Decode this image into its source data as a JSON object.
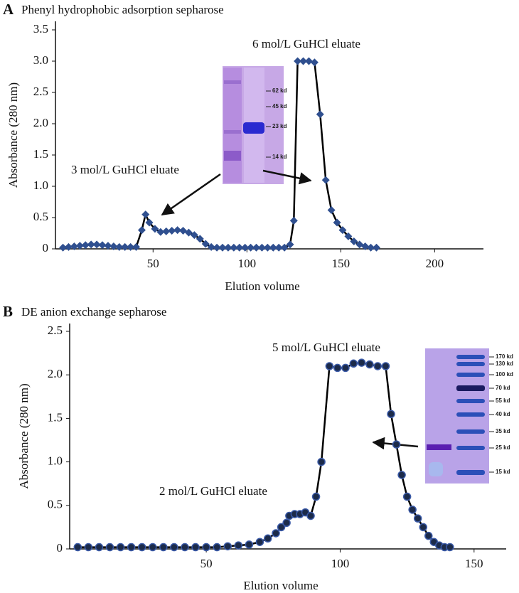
{
  "chart_data": [
    {
      "type": "line",
      "panel": "A",
      "title": "Phenyl hydrophobic adsorption sepharose",
      "xlabel": "Elution volume",
      "ylabel": "Absorbance (280 nm)",
      "x": [
        2,
        5,
        8,
        11,
        14,
        17,
        20,
        23,
        26,
        29,
        32,
        35,
        38,
        41,
        44,
        46,
        48,
        51,
        54,
        57,
        60,
        63,
        66,
        69,
        72,
        75,
        78,
        81,
        84,
        87,
        90,
        93,
        96,
        99,
        102,
        105,
        108,
        111,
        114,
        117,
        120,
        123,
        125,
        127,
        130,
        133,
        136,
        139,
        142,
        145,
        148,
        151,
        154,
        157,
        160,
        163,
        166,
        169
      ],
      "values": [
        0.02,
        0.03,
        0.04,
        0.05,
        0.06,
        0.07,
        0.07,
        0.06,
        0.05,
        0.04,
        0.03,
        0.03,
        0.03,
        0.03,
        0.3,
        0.55,
        0.42,
        0.32,
        0.27,
        0.28,
        0.29,
        0.3,
        0.29,
        0.26,
        0.22,
        0.16,
        0.08,
        0.03,
        0.02,
        0.02,
        0.02,
        0.02,
        0.02,
        0.02,
        0.02,
        0.02,
        0.02,
        0.02,
        0.02,
        0.02,
        0.02,
        0.07,
        0.45,
        3.0,
        3.0,
        3.0,
        2.98,
        2.15,
        1.1,
        0.62,
        0.42,
        0.3,
        0.2,
        0.12,
        0.07,
        0.04,
        0.02,
        0.02
      ],
      "color": "#2f4f8f",
      "xlim": [
        -2,
        226
      ],
      "xticks": [
        50,
        100,
        150,
        200
      ],
      "ylim": [
        0,
        3.5
      ],
      "yticks": [
        0,
        0.5,
        {
          "value": 1,
          "label": "1.0"
        },
        1.5,
        {
          "value": 2,
          "label": "2.0"
        },
        2.5,
        {
          "value": 3,
          "label": "3.0"
        },
        3.5
      ],
      "annotations": [
        "6 mol/L GuHCl eluate",
        "3 mol/L GuHCl eluate"
      ],
      "gel_labels": [
        "62 kd",
        "45 kd",
        "23 kd",
        "14 kd"
      ]
    },
    {
      "type": "line",
      "panel": "B",
      "title": "DE anion exchange sepharose",
      "xlabel": "Elution volume",
      "ylabel": "Absorbance (280 nm)",
      "x": [
        2,
        6,
        10,
        14,
        18,
        22,
        26,
        30,
        34,
        38,
        42,
        46,
        50,
        54,
        58,
        62,
        66,
        70,
        73,
        76,
        78,
        80,
        81,
        83,
        85,
        87,
        89,
        91,
        93,
        96,
        99,
        102,
        105,
        108,
        111,
        114,
        117,
        119,
        121,
        123,
        125,
        127,
        129,
        131,
        133,
        135,
        137,
        139,
        141
      ],
      "values": [
        0.02,
        0.02,
        0.02,
        0.02,
        0.02,
        0.02,
        0.02,
        0.02,
        0.02,
        0.02,
        0.02,
        0.02,
        0.02,
        0.02,
        0.03,
        0.04,
        0.05,
        0.08,
        0.12,
        0.18,
        0.25,
        0.3,
        0.38,
        0.4,
        0.4,
        0.42,
        0.38,
        0.6,
        1.0,
        2.1,
        2.08,
        2.08,
        2.13,
        2.14,
        2.12,
        2.1,
        2.1,
        1.55,
        1.2,
        0.85,
        0.6,
        0.45,
        0.35,
        0.25,
        0.15,
        0.08,
        0.04,
        0.02,
        0.02
      ],
      "color": "#1c2b4a",
      "xlim": [
        -1,
        162
      ],
      "xticks": [
        50,
        100,
        150
      ],
      "ylim": [
        0,
        2.5
      ],
      "yticks": [
        0,
        0.5,
        {
          "value": 1,
          "label": "1.0"
        },
        1.5,
        {
          "value": 2,
          "label": "2.0"
        },
        2.5
      ],
      "annotations": [
        "5 mol/L GuHCl eluate",
        "2 mol/L GuHCl eluate"
      ],
      "gel_labels": [
        "170 kd",
        "130 kd",
        "100 kd",
        "70 kd",
        "55 kd",
        "40 kd",
        "35 kd",
        "25 kd",
        "15 kd"
      ]
    }
  ]
}
